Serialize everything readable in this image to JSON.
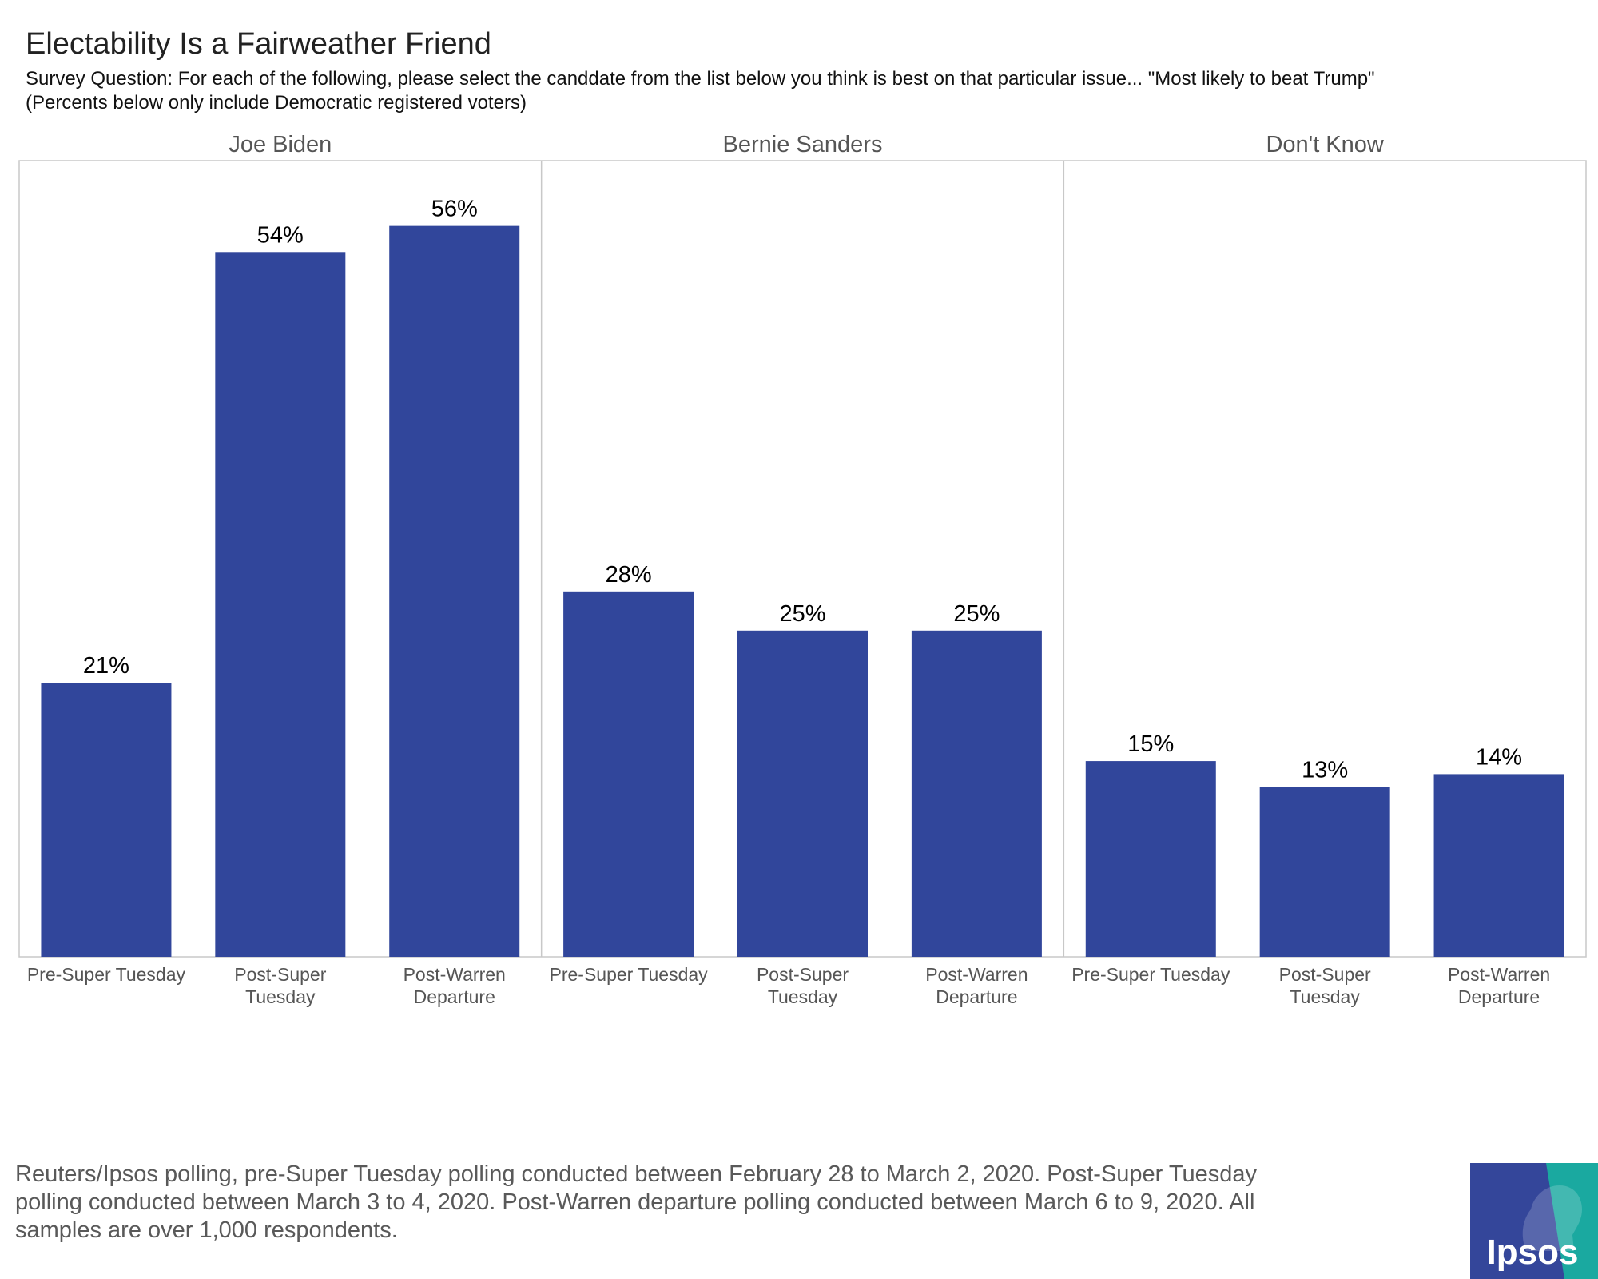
{
  "title": "Electability Is a Fairweather Friend",
  "subtitle_line1": "Survey Question: For each of the following, please select the canddate from the list below you think is best on that particular issue... \"Most likely to beat Trump\"",
  "subtitle_line2": "(Percents below only include Democratic registered voters)",
  "footnote": "Reuters/Ipsos polling, pre-Super Tuesday polling conducted between February 28 to March 2, 2020. Post-Super Tuesday polling conducted between March 3 to 4, 2020. Post-Warren departure polling conducted between March 6 to 9, 2020. All samples are over 1,000 respondents.",
  "logo": {
    "text": "Ipsos",
    "colors": [
      "#34469a",
      "#1aa9a0"
    ]
  },
  "chart_data": {
    "type": "bar",
    "title": "Electability Is a Fairweather Friend",
    "facets": [
      "Joe Biden",
      "Bernie Sanders",
      "Don't Know"
    ],
    "categories": [
      [
        "Pre-Super Tuesday"
      ],
      [
        "Post-Super",
        "Tuesday"
      ],
      [
        "Post-Warren",
        "Departure"
      ]
    ],
    "values": [
      [
        21,
        54,
        56
      ],
      [
        28,
        25,
        25
      ],
      [
        15,
        13,
        14
      ]
    ],
    "data_labels": [
      [
        "21%",
        "54%",
        "56%"
      ],
      [
        "28%",
        "25%",
        "25%"
      ],
      [
        "15%",
        "13%",
        "14%"
      ]
    ],
    "ylim": [
      0,
      61
    ],
    "bar_color": "#31469b",
    "grid": false,
    "legend": "none"
  }
}
